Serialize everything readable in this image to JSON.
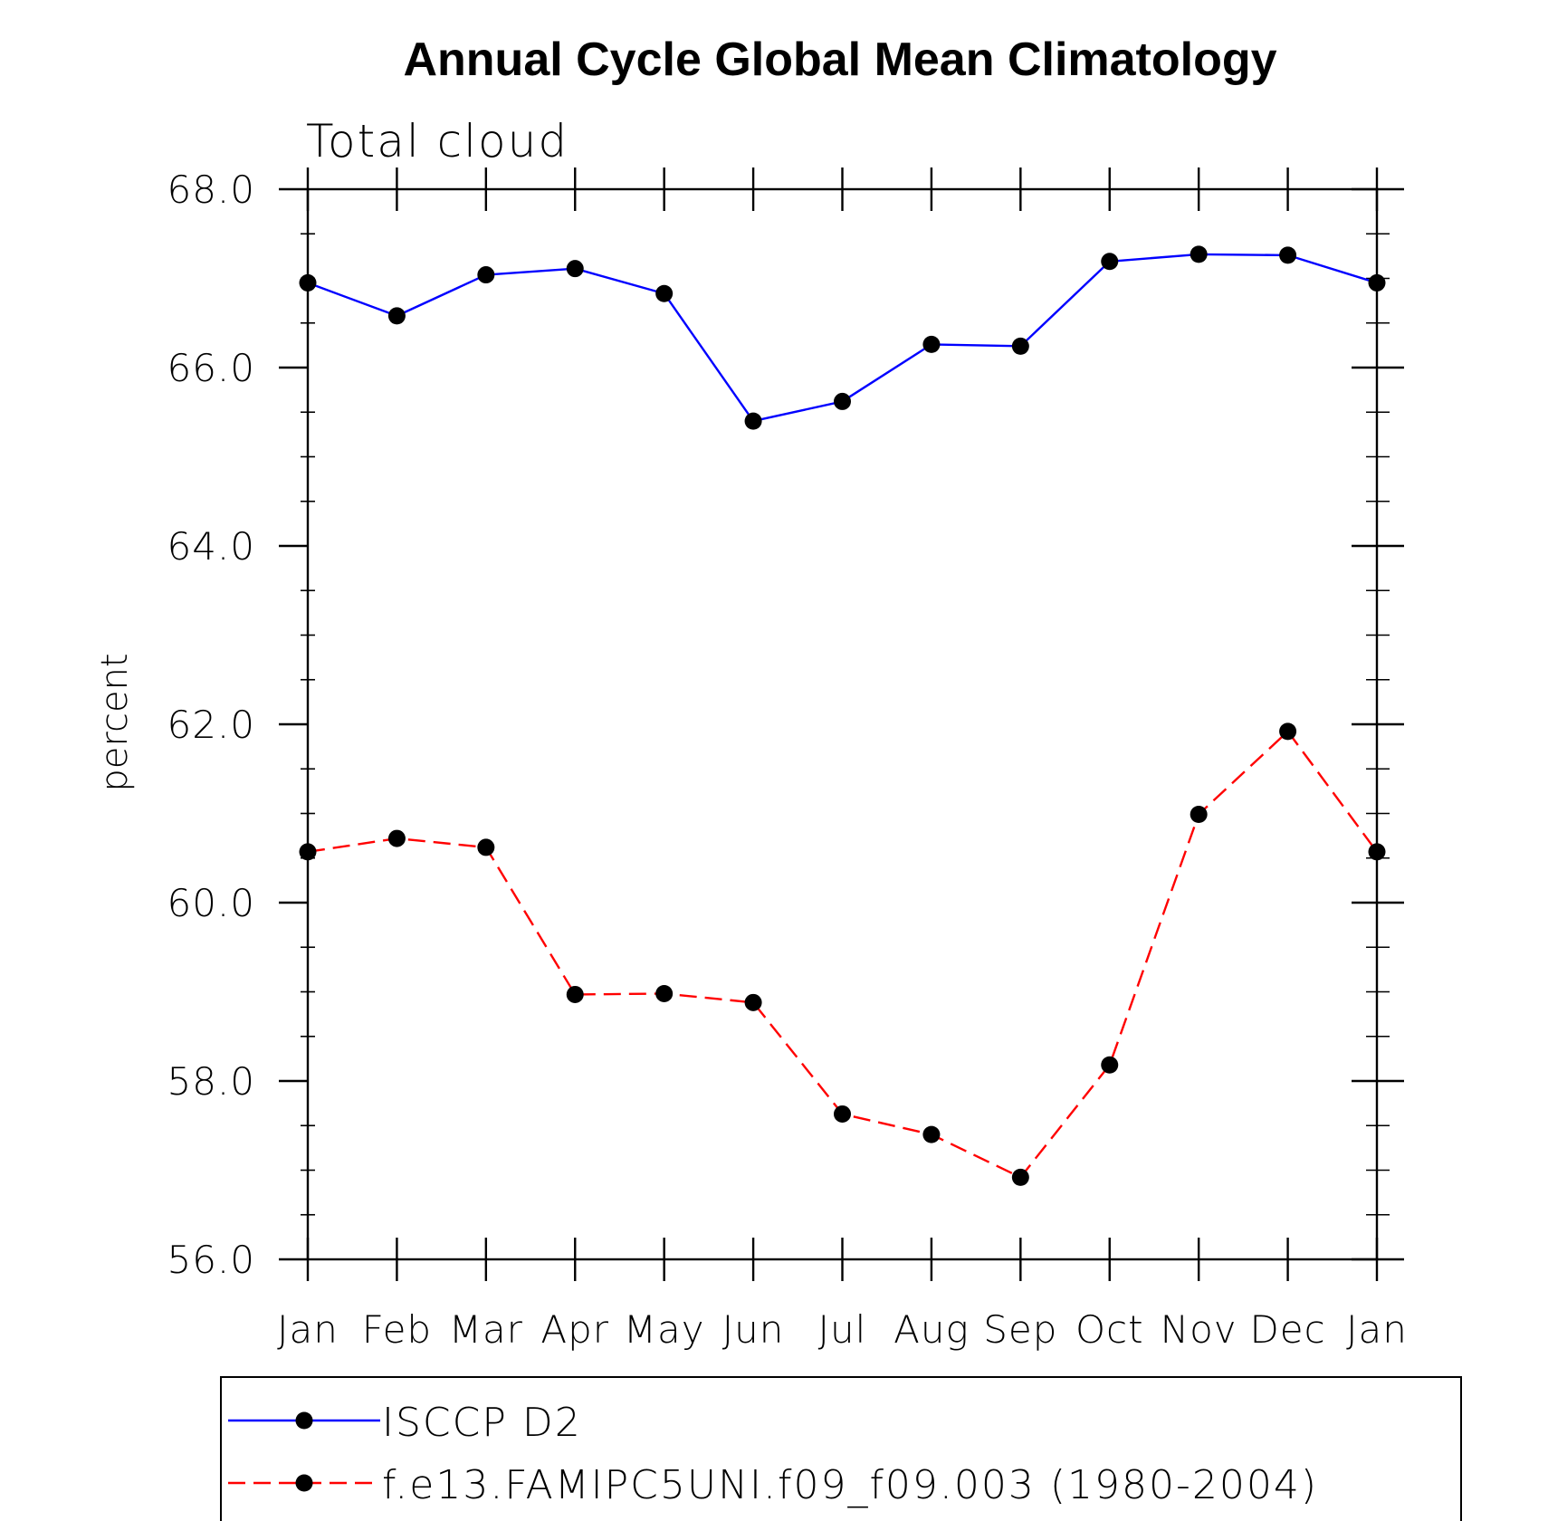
{
  "chart_data": {
    "type": "line",
    "title": "Annual Cycle Global Mean Climatology",
    "subtitle": "Total cloud",
    "xlabel": "",
    "ylabel": "percent",
    "categories": [
      "Jan",
      "Feb",
      "Mar",
      "Apr",
      "May",
      "Jun",
      "Jul",
      "Aug",
      "Sep",
      "Oct",
      "Nov",
      "Dec",
      "Jan"
    ],
    "ylim": [
      56.0,
      68.0
    ],
    "yticks": [
      "56.0",
      "58.0",
      "60.0",
      "62.0",
      "64.0",
      "66.0",
      "68.0"
    ],
    "ytick_values": [
      56,
      58,
      60,
      62,
      64,
      66,
      68
    ],
    "grid": false,
    "legend_position": "bottom",
    "series": [
      {
        "name": "ISCCP D2",
        "color": "#0000ff",
        "line_style": "solid",
        "marker": "filled-circle",
        "values": [
          66.95,
          66.58,
          67.04,
          67.11,
          66.83,
          65.4,
          65.62,
          66.26,
          66.24,
          67.19,
          67.27,
          67.26,
          66.95
        ]
      },
      {
        "name": "f.e13.FAMIPC5UNI.f09_f09.003 (1980-2004)",
        "color": "#ff0000",
        "line_style": "dashed",
        "marker": "filled-circle",
        "values": [
          60.57,
          60.72,
          60.62,
          58.97,
          58.98,
          58.88,
          57.63,
          57.4,
          56.92,
          58.18,
          60.99,
          61.92,
          60.57
        ]
      }
    ]
  }
}
